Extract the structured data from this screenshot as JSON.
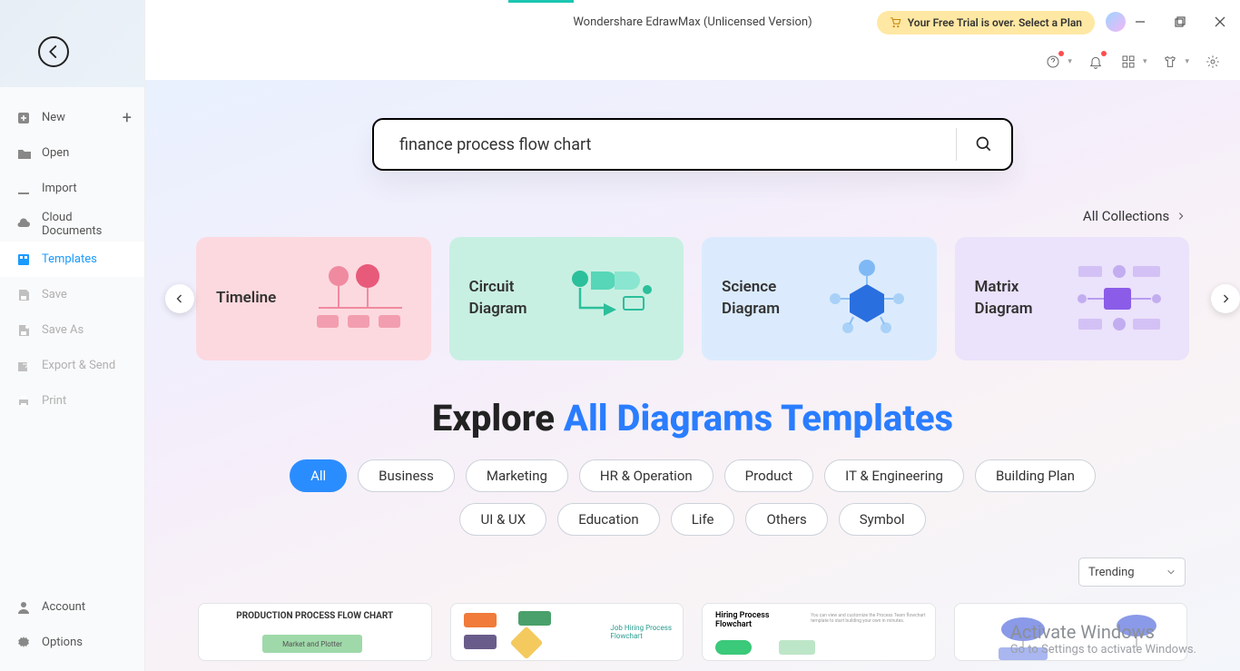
{
  "titlebar": {
    "title": "Wondershare EdrawMax (Unlicensed Version)",
    "trial_label": "Your Free Trial is over. Select a Plan"
  },
  "sidebar": {
    "items": [
      {
        "key": "new",
        "label": "New",
        "icon": "plus-square",
        "plus": true
      },
      {
        "key": "open",
        "label": "Open",
        "icon": "folder"
      },
      {
        "key": "import",
        "label": "Import",
        "icon": "import"
      },
      {
        "key": "cloud",
        "label": "Cloud Documents",
        "icon": "cloud"
      },
      {
        "key": "templates",
        "label": "Templates",
        "icon": "template",
        "active": true
      },
      {
        "key": "save",
        "label": "Save",
        "icon": "save",
        "disabled": true
      },
      {
        "key": "saveas",
        "label": "Save As",
        "icon": "saveas",
        "disabled": true
      },
      {
        "key": "export",
        "label": "Export & Send",
        "icon": "export",
        "disabled": true
      },
      {
        "key": "print",
        "label": "Print",
        "icon": "print",
        "disabled": true
      }
    ],
    "bottom": [
      {
        "key": "account",
        "label": "Account",
        "icon": "user"
      },
      {
        "key": "options",
        "label": "Options",
        "icon": "gear"
      }
    ]
  },
  "search": {
    "value": "finance process flow chart",
    "placeholder": ""
  },
  "all_collections_label": "All Collections",
  "cards": [
    {
      "label": "Timeline",
      "color": "c-pink"
    },
    {
      "label": "Circuit Diagram",
      "color": "c-green"
    },
    {
      "label": "Science Diagram",
      "color": "c-blue"
    },
    {
      "label": "Matrix Diagram",
      "color": "c-purple"
    }
  ],
  "headline": {
    "pre": "Explore ",
    "accent": "All Diagrams Templates"
  },
  "categories": [
    "All",
    "Business",
    "Marketing",
    "HR & Operation",
    "Product",
    "IT & Engineering",
    "Building Plan",
    "UI & UX",
    "Education",
    "Life",
    "Others",
    "Symbol"
  ],
  "active_category": "All",
  "sort": {
    "label": "Trending"
  },
  "templates": [
    {
      "title": "PRODUCTION PROCESS FLOW CHART"
    },
    {
      "title": "Job Hiring Process Flowchart"
    },
    {
      "title": "Hiring Process Flowchart"
    },
    {
      "title": ""
    }
  ],
  "watermark": {
    "l1": "Activate Windows",
    "l2": "Go to Settings to activate Windows."
  },
  "colors": {
    "accent": "#2a8dff",
    "pink": "#fcd9df",
    "green": "#c8f0e2",
    "blue": "#dbebfd",
    "purple": "#ebe2fb"
  }
}
